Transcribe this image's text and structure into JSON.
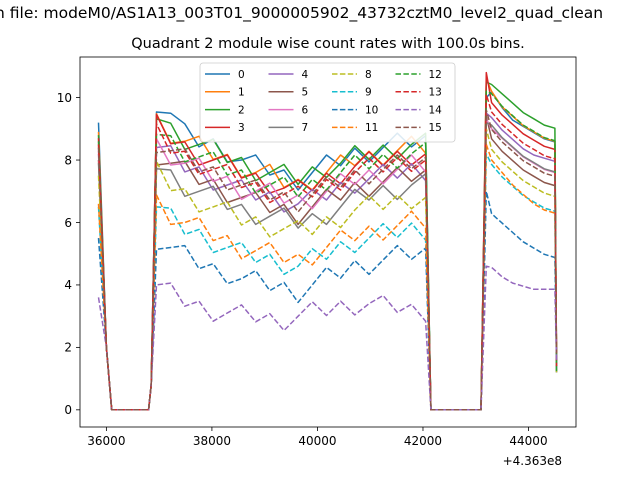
{
  "figure": {
    "suptitle": "n file: modeM0/AS1A13_003T01_9000005902_43732cztM0_level2_quad_clean",
    "title": "Quadrant 2 module wise count rates with 100.0s bins."
  },
  "chart_data": {
    "type": "line",
    "title": "Quadrant 2 module wise count rates with 100.0s bins.",
    "xlabel": "",
    "ylabel": "",
    "x_offset_label": "+4.363e8",
    "xlim": [
      35500,
      44900
    ],
    "ylim": [
      -0.55,
      11.3
    ],
    "xticks": [
      36000,
      38000,
      40000,
      42000,
      44000
    ],
    "xtick_labels": [
      "36000",
      "38000",
      "40000",
      "42000",
      "44000"
    ],
    "yticks": [
      0,
      2,
      4,
      6,
      8,
      10
    ],
    "ytick_labels": [
      "0",
      "2",
      "4",
      "6",
      "8",
      "10"
    ],
    "grid": false,
    "legend_position": "upper center",
    "legend_columns": 4,
    "colors": [
      "#1f77b4",
      "#ff7f0e",
      "#2ca02c",
      "#d62728",
      "#9467bd",
      "#8c564b",
      "#e377c2",
      "#7f7f7f",
      "#bcbd22",
      "#17becf",
      "#1f77b4",
      "#ff7f0e",
      "#2ca02c",
      "#d62728",
      "#9467bd",
      "#8c564b"
    ],
    "series": [
      {
        "name": "0",
        "linestyle": "solid",
        "seg1": {
          "start": 9.2,
          "spike": 9.8,
          "values": [
            9.9,
            9.5,
            8.8,
            8.6,
            8.5,
            8.3,
            8.0,
            7.8,
            7.7,
            7.5,
            7.4,
            7.6,
            7.8,
            8.0,
            8.2,
            8.3,
            8.4,
            8.5,
            8.6,
            8.6
          ]
        },
        "seg2": {
          "start": 10.0,
          "values": [
            10.5,
            10.0,
            9.6,
            9.4,
            9.2,
            9.0,
            8.9
          ]
        }
      },
      {
        "name": "1",
        "linestyle": "solid",
        "seg1": {
          "start": 8.9,
          "spike": 9.1,
          "values": [
            9.3,
            8.9,
            8.6,
            8.4,
            8.2,
            8.0,
            7.8,
            7.6,
            7.5,
            7.3,
            7.2,
            7.4,
            7.6,
            7.8,
            8.0,
            8.1,
            8.2,
            8.3,
            8.4,
            8.4
          ]
        },
        "seg2": {
          "start": 10.6,
          "values": [
            10.2,
            9.7,
            9.4,
            9.1,
            8.9,
            8.7,
            8.6
          ]
        }
      },
      {
        "name": "2",
        "linestyle": "solid",
        "seg1": {
          "start": 8.8,
          "spike": 9.0,
          "values": [
            9.5,
            9.0,
            8.7,
            8.5,
            8.3,
            8.1,
            7.9,
            7.7,
            7.6,
            7.5,
            7.4,
            7.6,
            7.8,
            7.9,
            8.1,
            8.2,
            8.3,
            8.4,
            8.5,
            8.5
          ]
        },
        "seg2": {
          "start": 10.5,
          "values": [
            10.1,
            9.8,
            9.5,
            9.2,
            9.0,
            8.8,
            8.7
          ]
        }
      },
      {
        "name": "3",
        "linestyle": "solid",
        "seg1": {
          "start": 8.7,
          "spike": 8.9,
          "values": [
            9.1,
            8.7,
            8.4,
            8.2,
            8.0,
            7.8,
            7.6,
            7.4,
            7.3,
            7.1,
            7.0,
            7.2,
            7.4,
            7.6,
            7.8,
            7.9,
            8.0,
            8.1,
            8.2,
            8.2
          ]
        },
        "seg2": {
          "start": 10.8,
          "values": [
            10.0,
            9.6,
            9.3,
            9.0,
            8.8,
            8.6,
            8.5
          ]
        }
      },
      {
        "name": "4",
        "linestyle": "solid",
        "seg1": {
          "start": 8.2,
          "spike": 8.4,
          "values": [
            8.4,
            8.1,
            7.8,
            7.6,
            7.4,
            7.2,
            7.0,
            6.9,
            6.8,
            6.7,
            6.6,
            6.7,
            6.9,
            7.1,
            7.3,
            7.4,
            7.5,
            7.6,
            7.7,
            7.7
          ]
        },
        "seg2": {
          "start": 9.5,
          "values": [
            9.2,
            8.8,
            8.5,
            8.2,
            8.0,
            7.9,
            7.8
          ]
        }
      },
      {
        "name": "5",
        "linestyle": "solid",
        "seg1": {
          "start": 8.0,
          "spike": 8.2,
          "values": [
            8.2,
            7.9,
            7.6,
            7.4,
            7.2,
            7.0,
            6.8,
            6.6,
            6.5,
            6.4,
            6.3,
            6.5,
            6.7,
            6.9,
            7.1,
            7.2,
            7.3,
            7.4,
            7.5,
            7.5
          ]
        },
        "seg2": {
          "start": 9.4,
          "values": [
            9.0,
            8.6,
            8.3,
            8.0,
            7.8,
            7.6,
            7.5
          ]
        }
      },
      {
        "name": "6",
        "linestyle": "solid",
        "seg1": {
          "start": 8.3,
          "spike": 8.5,
          "values": [
            8.5,
            8.2,
            7.9,
            7.7,
            7.5,
            7.3,
            7.1,
            7.0,
            6.9,
            6.8,
            6.7,
            6.8,
            7.0,
            7.2,
            7.4,
            7.5,
            7.6,
            7.7,
            7.8,
            7.8
          ]
        },
        "seg2": {
          "start": 9.3,
          "values": [
            9.0,
            8.7,
            8.4,
            8.1,
            7.9,
            7.7,
            7.6
          ]
        }
      },
      {
        "name": "7",
        "linestyle": "solid",
        "seg1": {
          "start": 7.9,
          "spike": 8.0,
          "values": [
            7.9,
            7.5,
            7.2,
            7.0,
            6.8,
            6.6,
            6.4,
            6.3,
            6.2,
            6.1,
            6.0,
            6.1,
            6.3,
            6.5,
            6.7,
            6.9,
            7.0,
            7.1,
            7.2,
            7.2
          ]
        },
        "seg2": {
          "start": 9.2,
          "values": [
            8.8,
            8.4,
            8.1,
            7.8,
            7.6,
            7.4,
            7.3
          ]
        }
      },
      {
        "name": "8",
        "linestyle": "dashed",
        "seg1": {
          "start": 7.5,
          "spike": 7.7,
          "values": [
            7.6,
            7.2,
            6.9,
            6.7,
            6.5,
            6.3,
            6.1,
            6.0,
            5.9,
            5.8,
            5.7,
            5.8,
            6.0,
            6.2,
            6.4,
            6.5,
            6.6,
            6.7,
            6.8,
            6.8
          ]
        },
        "seg2": {
          "start": 9.0,
          "values": [
            8.5,
            8.1,
            7.8,
            7.5,
            7.3,
            7.1,
            7.0
          ]
        }
      },
      {
        "name": "9",
        "linestyle": "dashed",
        "seg1": {
          "start": 6.5,
          "spike": 6.6,
          "values": [
            6.5,
            6.1,
            5.8,
            5.6,
            5.4,
            5.2,
            5.0,
            4.9,
            4.8,
            4.7,
            4.6,
            4.8,
            5.0,
            5.2,
            5.4,
            5.5,
            5.6,
            5.7,
            5.8,
            5.8
          ]
        },
        "seg2": {
          "start": 8.2,
          "values": [
            7.7,
            7.3,
            7.0,
            6.7,
            6.5,
            6.3,
            6.2
          ]
        }
      },
      {
        "name": "10",
        "linestyle": "dashed",
        "seg1": {
          "start": 5.5,
          "spike": 5.6,
          "values": [
            5.5,
            5.2,
            4.9,
            4.7,
            4.5,
            4.4,
            4.2,
            4.1,
            4.0,
            3.9,
            3.8,
            4.0,
            4.2,
            4.4,
            4.6,
            4.7,
            4.8,
            4.9,
            5.0,
            5.0
          ]
        },
        "seg2": {
          "start": 7.0,
          "values": [
            6.6,
            6.3,
            6.0,
            5.7,
            5.5,
            5.3,
            5.2
          ]
        }
      },
      {
        "name": "11",
        "linestyle": "dashed",
        "seg1": {
          "start": 6.6,
          "spike": 6.7,
          "values": [
            6.7,
            6.3,
            6.0,
            5.8,
            5.6,
            5.4,
            5.2,
            5.1,
            5.0,
            4.9,
            4.8,
            5.0,
            5.2,
            5.4,
            5.6,
            5.7,
            5.8,
            5.9,
            6.0,
            6.0
          ]
        },
        "seg2": {
          "start": 8.5,
          "values": [
            8.0,
            7.6,
            7.2,
            6.9,
            6.6,
            6.4,
            6.3
          ]
        }
      },
      {
        "name": "12",
        "linestyle": "dashed",
        "seg1": {
          "start": 8.6,
          "spike": 8.8,
          "values": [
            9.0,
            8.6,
            8.3,
            8.1,
            7.9,
            7.7,
            7.5,
            7.3,
            7.2,
            7.1,
            7.0,
            7.2,
            7.4,
            7.6,
            7.8,
            7.9,
            8.0,
            8.1,
            8.2,
            8.2
          ]
        },
        "seg2": {
          "start": 10.2,
          "values": [
            9.8,
            9.4,
            9.1,
            8.8,
            8.6,
            8.4,
            8.3
          ]
        }
      },
      {
        "name": "13",
        "linestyle": "dashed",
        "seg1": {
          "start": 8.5,
          "spike": 8.7,
          "values": [
            8.8,
            8.4,
            8.1,
            7.9,
            7.7,
            7.5,
            7.3,
            7.1,
            7.0,
            6.9,
            6.8,
            7.0,
            7.2,
            7.4,
            7.6,
            7.7,
            7.8,
            7.9,
            8.0,
            8.0
          ]
        },
        "seg2": {
          "start": 10.1,
          "values": [
            9.7,
            9.3,
            9.0,
            8.7,
            8.5,
            8.3,
            8.2
          ]
        }
      },
      {
        "name": "14",
        "linestyle": "dashed",
        "seg1": {
          "start": 3.6,
          "spike": 3.7,
          "values": [
            4.0,
            3.7,
            3.5,
            3.3,
            3.2,
            3.1,
            3.0,
            3.0,
            2.9,
            2.9,
            3.0,
            3.1,
            3.2,
            3.3,
            3.4,
            3.4,
            3.3,
            3.3,
            3.2,
            3.2
          ]
        },
        "seg2": {
          "start": 4.6,
          "values": [
            4.4,
            4.1,
            3.9,
            3.8,
            3.7,
            3.7,
            3.7
          ]
        }
      },
      {
        "name": "15",
        "linestyle": "dashed",
        "seg1": {
          "start": 8.4,
          "spike": 8.6,
          "values": [
            8.6,
            8.3,
            8.0,
            7.8,
            7.6,
            7.4,
            7.2,
            7.0,
            6.9,
            6.8,
            6.7,
            6.9,
            7.1,
            7.3,
            7.5,
            7.6,
            7.7,
            7.8,
            7.9,
            7.9
          ]
        },
        "seg2": {
          "start": 9.6,
          "values": [
            9.3,
            8.9,
            8.6,
            8.3,
            8.1,
            7.9,
            7.8
          ]
        }
      }
    ],
    "segments": {
      "seg1": {
        "start_x": 35850,
        "end_x": 42150,
        "drop_x": 36000,
        "rise_x": 36800
      },
      "seg2": {
        "start_x": 43100,
        "end_x": 44500
      }
    }
  }
}
